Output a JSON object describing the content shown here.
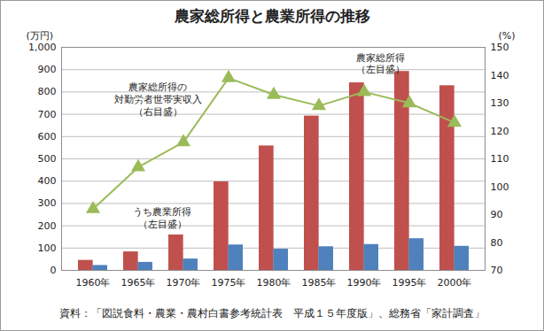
{
  "chart_data": {
    "type": "bar",
    "title": "農家総所得と農業所得の推移",
    "caption": "資料：「図説食料・農業・農村白書参考統計表　平成１５年度版」、総務省「家計調査」",
    "ylabel": "(万円)",
    "y2label": "(%)",
    "categories": [
      "1960年",
      "1965年",
      "1970年",
      "1975年",
      "1980年",
      "1985年",
      "1990年",
      "1995年",
      "2000年"
    ],
    "series": [
      {
        "name": "農家総所得\n（左目盛）",
        "type": "bar",
        "color": "#c0504d",
        "values": [
          45,
          83,
          159,
          397,
          558,
          692,
          841,
          892,
          828
        ]
      },
      {
        "name": "うち農業所得\n（左目盛）",
        "type": "bar",
        "color": "#4f81bd",
        "values": [
          22,
          36,
          51,
          114,
          95,
          106,
          116,
          142,
          108
        ]
      },
      {
        "name": "農家総所得の\n対勤労者世帯実収入\n（右目盛）",
        "type": "line",
        "axis": "y2",
        "marker": "triangle",
        "color": "#9bbb59",
        "values": [
          92,
          107,
          116,
          139,
          133,
          129,
          134,
          130,
          123
        ]
      }
    ],
    "ylim": [
      0,
      1000
    ],
    "yticks": [
      0,
      100,
      200,
      300,
      400,
      500,
      600,
      700,
      800,
      900,
      {
        "value": 1000,
        "label": "1,000"
      }
    ],
    "y2lim": [
      70,
      150
    ],
    "y2ticks": [
      70,
      80,
      90,
      100,
      110,
      120,
      130,
      140,
      150
    ],
    "grid": true
  }
}
